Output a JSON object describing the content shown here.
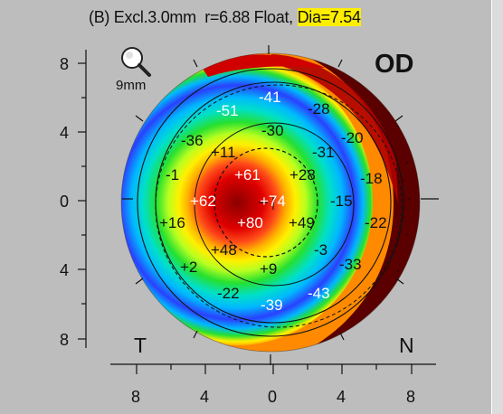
{
  "header": {
    "prefix": "(B) Excl.3.0mm  r=6.88 Float, ",
    "highlight": "Dia=7.54"
  },
  "eye_label": "OD",
  "zoom": {
    "icon": "magnifier-icon",
    "label": "9mm"
  },
  "side_labels": {
    "temporal": "T",
    "nasal": "N"
  },
  "y_ticks": [
    "8",
    "4",
    "0",
    "4",
    "8"
  ],
  "x_ticks": [
    "8",
    "4",
    "0",
    "4",
    "8"
  ],
  "map_values": [
    {
      "t": "-41",
      "c": "w"
    },
    {
      "t": "-51",
      "c": "w"
    },
    {
      "t": "-28",
      "c": "d"
    },
    {
      "t": "-30",
      "c": "d"
    },
    {
      "t": "-36",
      "c": "d"
    },
    {
      "t": "-20",
      "c": "d"
    },
    {
      "t": "+11",
      "c": "d"
    },
    {
      "t": "-31",
      "c": "d"
    },
    {
      "t": "-1",
      "c": "d"
    },
    {
      "t": "+61",
      "c": "w"
    },
    {
      "t": "+28",
      "c": "d"
    },
    {
      "t": "-18",
      "c": "d"
    },
    {
      "t": "+62",
      "c": "w"
    },
    {
      "t": "+74",
      "c": "w"
    },
    {
      "t": "-15",
      "c": "d"
    },
    {
      "t": "+16",
      "c": "d"
    },
    {
      "t": "+80",
      "c": "w"
    },
    {
      "t": "+49",
      "c": "d"
    },
    {
      "t": "-22",
      "c": "d"
    },
    {
      "t": "+48",
      "c": "d"
    },
    {
      "t": "-3",
      "c": "d"
    },
    {
      "t": "+2",
      "c": "d"
    },
    {
      "t": "+9",
      "c": "d"
    },
    {
      "t": "-33",
      "c": "d"
    },
    {
      "t": "-22",
      "c": "d"
    },
    {
      "t": "-43",
      "c": "w"
    },
    {
      "t": "-39",
      "c": "w"
    }
  ],
  "colors": {
    "background": "#bdbdbd",
    "highlight": "#ffee00",
    "elevation_high": "#c80000",
    "elevation_low": "#1e3cff",
    "edge_dark": "#5a0000"
  }
}
